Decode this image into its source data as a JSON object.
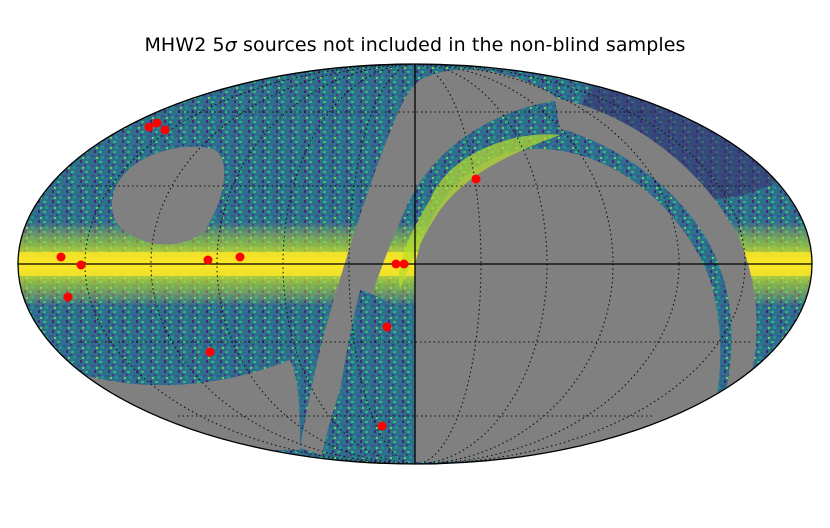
{
  "title": {
    "prefix": "MHW2 5",
    "sigma": "σ",
    "suffix": " sources not included in the non-blind samples"
  },
  "colors": {
    "mask": "#808080",
    "source_marker": "#ff0000",
    "graticule": "#111111",
    "colormap": [
      "#440154",
      "#31688e",
      "#21918c",
      "#35b779",
      "#fde725"
    ]
  },
  "projection": "mollweide",
  "graticule": "dotted",
  "source_count": 14
}
